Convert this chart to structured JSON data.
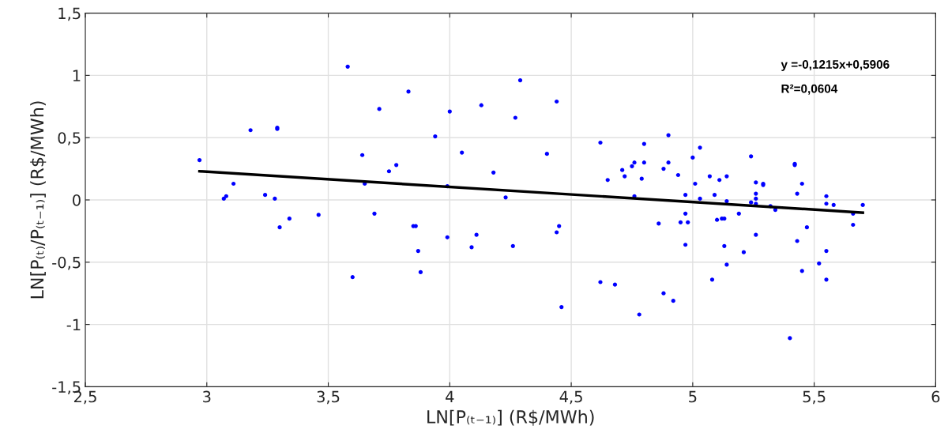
{
  "chart_data": {
    "type": "scatter",
    "xlabel": "LN[P₍ₜ₋₁₎] (R$/MWh)",
    "ylabel": "LN[P₍ₜ₎/P₍ₜ₋₁₎] (R$/MWh)",
    "annotations": [
      "y =-0,1215x+0,5906",
      "R²=0,0604"
    ],
    "grid": true,
    "xlim": [
      2.5,
      6
    ],
    "ylim": [
      -1.5,
      1.5
    ],
    "xticks": [
      {
        "value": 2.5,
        "label": "2,5"
      },
      3,
      {
        "value": 3.5,
        "label": "3,5"
      },
      4,
      {
        "value": 4.5,
        "label": "4,5"
      },
      5,
      {
        "value": 5.5,
        "label": "5,5"
      },
      6
    ],
    "yticks": [
      {
        "value": -1.5,
        "label": "-1,5"
      },
      -1,
      {
        "value": -0.5,
        "label": "-0,5"
      },
      0,
      {
        "value": 0.5,
        "label": "0,5"
      },
      1,
      {
        "value": 1.5,
        "label": "1,5"
      }
    ],
    "series": [
      {
        "marker": "circle",
        "color": "#0000ff",
        "x": [
          2.97,
          3.07,
          3.08,
          3.11,
          3.18,
          3.24,
          3.28,
          3.29,
          3.29,
          3.3,
          3.34,
          3.46,
          3.58,
          3.6,
          3.64,
          3.65,
          3.69,
          3.71,
          3.75,
          3.78,
          3.83,
          3.85,
          3.86,
          3.87,
          3.88,
          3.94,
          3.99,
          3.99,
          4.0,
          4.05,
          4.09,
          4.11,
          4.13,
          4.18,
          4.23,
          4.26,
          4.27,
          4.29,
          4.4,
          4.44,
          4.44,
          4.45,
          4.46,
          4.62,
          4.62,
          4.65,
          4.68,
          4.71,
          4.72,
          4.75,
          4.76,
          4.76,
          4.78,
          4.79,
          4.8,
          4.8,
          4.86,
          4.88,
          4.88,
          4.9,
          4.9,
          4.92,
          4.94,
          4.95,
          4.97,
          4.97,
          4.97,
          4.98,
          5.0,
          5.01,
          5.03,
          5.03,
          5.07,
          5.08,
          5.09,
          5.1,
          5.11,
          5.12,
          5.13,
          5.13,
          5.14,
          5.14,
          5.14,
          5.19,
          5.21,
          5.24,
          5.24,
          5.26,
          5.26,
          5.26,
          5.26,
          5.26,
          5.29,
          5.29,
          5.32,
          5.34,
          5.4,
          5.42,
          5.42,
          5.43,
          5.43,
          5.45,
          5.45,
          5.47,
          5.52,
          5.55,
          5.55,
          5.55,
          5.55,
          5.58,
          5.66,
          5.66,
          5.7
        ],
        "values": [
          0.32,
          0.01,
          0.03,
          0.13,
          0.56,
          0.04,
          0.01,
          0.57,
          0.58,
          -0.22,
          -0.15,
          -0.12,
          1.07,
          -0.62,
          0.36,
          0.13,
          -0.11,
          0.73,
          0.23,
          0.28,
          0.87,
          -0.21,
          -0.21,
          -0.41,
          -0.58,
          0.51,
          0.11,
          -0.3,
          0.71,
          0.38,
          -0.38,
          -0.28,
          0.76,
          0.22,
          0.02,
          -0.37,
          0.66,
          0.96,
          0.37,
          -0.26,
          0.79,
          -0.21,
          -0.86,
          0.46,
          -0.66,
          0.16,
          -0.68,
          0.24,
          0.19,
          0.27,
          0.3,
          0.03,
          -0.92,
          0.17,
          0.3,
          0.45,
          -0.19,
          0.25,
          -0.75,
          0.52,
          0.3,
          -0.81,
          0.2,
          -0.18,
          0.04,
          -0.11,
          -0.36,
          -0.18,
          0.34,
          0.13,
          0.42,
          0.01,
          0.19,
          -0.64,
          0.04,
          -0.16,
          0.16,
          -0.15,
          -0.37,
          -0.15,
          0.19,
          -0.01,
          -0.52,
          -0.11,
          -0.42,
          -0.02,
          0.35,
          -0.28,
          0.14,
          0.05,
          0.01,
          -0.03,
          0.13,
          0.12,
          -0.05,
          -0.08,
          -1.11,
          0.28,
          0.29,
          0.05,
          -0.33,
          0.13,
          -0.57,
          -0.22,
          -0.51,
          0.03,
          -0.03,
          -0.41,
          -0.64,
          -0.04,
          -0.11,
          -0.2,
          -0.04
        ]
      },
      {
        "type": "line",
        "color": "#000000",
        "x": [
          2.97,
          5.7
        ],
        "values": [
          0.23,
          -0.102
        ]
      }
    ]
  }
}
